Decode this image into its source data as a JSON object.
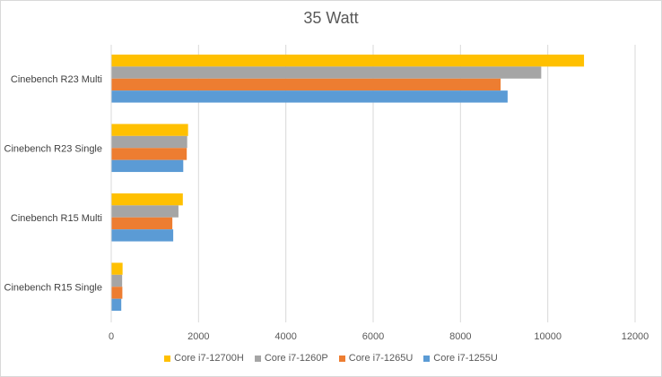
{
  "chart_data": {
    "type": "bar",
    "orientation": "horizontal",
    "title": "35 Watt",
    "xlabel": "",
    "ylabel": "",
    "xlim": [
      0,
      12000
    ],
    "x_ticks": [
      "0",
      "2000",
      "4000",
      "6000",
      "8000",
      "10000",
      "12000"
    ],
    "grid": true,
    "legend_position": "bottom",
    "categories": [
      "Cinebench R23 Multi",
      "Cinebench R23 Single",
      "Cinebench R15 Multi",
      "Cinebench R15 Single"
    ],
    "series": [
      {
        "name": "Core i7-12700H",
        "color": "#ffc000",
        "values": [
          10830,
          1760,
          1640,
          260
        ]
      },
      {
        "name": "Core i7-1260P",
        "color": "#a5a5a5",
        "values": [
          9850,
          1740,
          1540,
          250
        ]
      },
      {
        "name": "Core i7-1265U",
        "color": "#ed7d31",
        "values": [
          8920,
          1730,
          1400,
          255
        ]
      },
      {
        "name": "Core i7-1255U",
        "color": "#5b9bd5",
        "values": [
          9080,
          1650,
          1420,
          230
        ]
      }
    ]
  }
}
